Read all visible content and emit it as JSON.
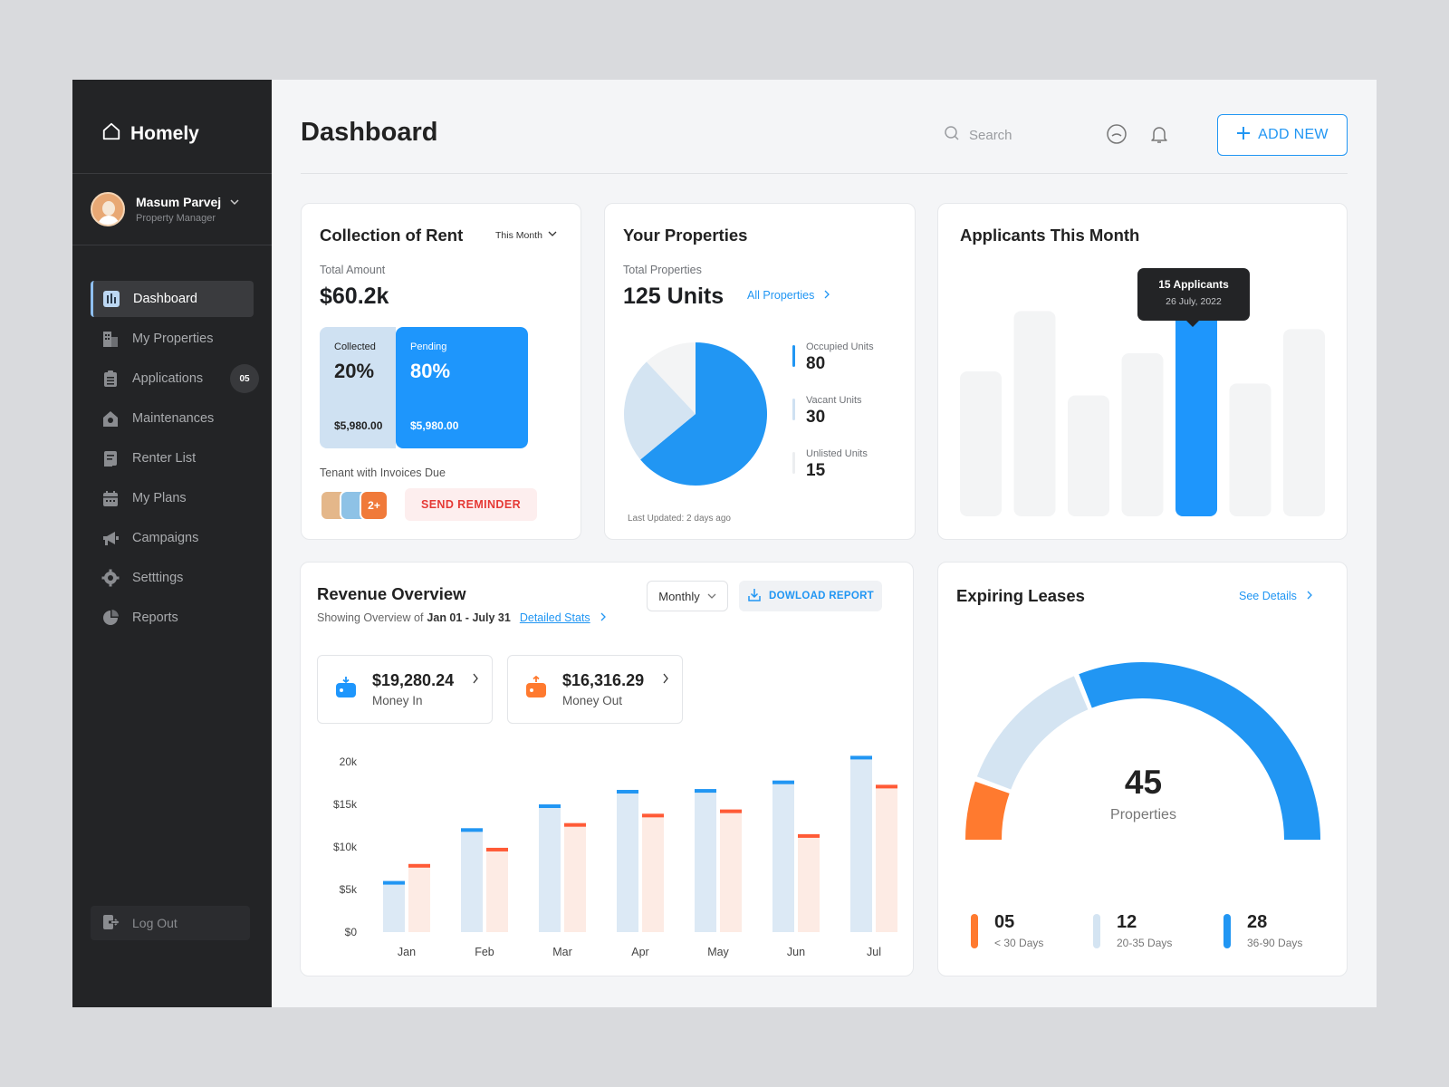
{
  "app": {
    "name": "Homely"
  },
  "user": {
    "name": "Masum Parvej",
    "role": "Property Manager"
  },
  "nav": [
    {
      "label": "Dashboard",
      "icon": "chart-icon",
      "active": true
    },
    {
      "label": "My Properties",
      "icon": "building-icon"
    },
    {
      "label": "Applications",
      "icon": "clipboard-icon",
      "badge": "05"
    },
    {
      "label": "Maintenances",
      "icon": "home-gear-icon"
    },
    {
      "label": "Renter List",
      "icon": "list-icon"
    },
    {
      "label": "My Plans",
      "icon": "calendar-icon"
    },
    {
      "label": "Campaigns",
      "icon": "megaphone-icon"
    },
    {
      "label": "Setttings",
      "icon": "gear-icon"
    },
    {
      "label": "Reports",
      "icon": "pie-icon"
    }
  ],
  "logout_label": "Log Out",
  "header": {
    "title": "Dashboard",
    "search_placeholder": "Search",
    "add_new_label": "ADD NEW"
  },
  "rent": {
    "title": "Collection of Rent",
    "filter": "This Month",
    "total_label": "Total Amount",
    "total_value": "$60.2k",
    "collected": {
      "label": "Collected",
      "pct": "20%",
      "amount": "$5,980.00"
    },
    "pending": {
      "label": "Pending",
      "pct": "80%",
      "amount": "$5,980.00"
    },
    "tenants_label": "Tenant with Invoices Due",
    "more_count": "2+",
    "reminder_label": "SEND REMINDER"
  },
  "properties": {
    "title": "Your Properties",
    "total_label": "Total Properties",
    "total_value": "125 Units",
    "link_label": "All Properties",
    "legend": [
      {
        "label": "Occupied Units",
        "value": "80",
        "color": "#2196f3"
      },
      {
        "label": "Vacant Units",
        "value": "30",
        "color": "#cfe1f2"
      },
      {
        "label": "Unlisted Units",
        "value": "15",
        "color": "#f3f4f5"
      }
    ],
    "updated": "Last Updated: 2 days ago"
  },
  "applicants": {
    "title": "Applicants This Month",
    "tooltip_title": "15 Applicants",
    "tooltip_date": "26 July, 2022"
  },
  "revenue": {
    "title": "Revenue Overview",
    "subtitle_prefix": "Showing Overview of",
    "subtitle_range": "Jan 01 - July 31",
    "stats_link": "Detailed Stats",
    "period": "Monthly",
    "download_label": "DOWLOAD REPORT",
    "money_in": {
      "value": "$19,280.24",
      "label": "Money In"
    },
    "money_out": {
      "value": "$16,316.29",
      "label": "Money Out"
    }
  },
  "leases": {
    "title": "Expiring Leases",
    "link_label": "See Details",
    "center_value": "45",
    "center_label": "Properties",
    "stats": [
      {
        "value": "05",
        "label": "< 30 Days",
        "color": "#ff7a2f"
      },
      {
        "value": "12",
        "label": "20-35 Days",
        "color": "#d4e4f2"
      },
      {
        "value": "28",
        "label": "36-90 Days",
        "color": "#2196f3"
      }
    ]
  },
  "chart_data": [
    {
      "type": "pie",
      "title": "Your Properties",
      "labels": [
        "Occupied Units",
        "Vacant Units",
        "Unlisted Units"
      ],
      "values": [
        80,
        30,
        15
      ],
      "colors": [
        "#2196f3",
        "#d4e4f2",
        "#f3f4f5"
      ]
    },
    {
      "type": "bar",
      "title": "Applicants This Month",
      "values": [
        12,
        17,
        10,
        13.5,
        17.5,
        11,
        15.5
      ],
      "highlight_index": 4,
      "colors": {
        "bar": "#f3f4f5",
        "highlight": "#1e96fc"
      }
    },
    {
      "type": "bar",
      "title": "Revenue Overview",
      "categories": [
        "Jan",
        "Feb",
        "Mar",
        "Apr",
        "May",
        "Jun",
        "Jul"
      ],
      "yticks": [
        "$0",
        "$5k",
        "$10k",
        "$15k",
        "20k"
      ],
      "ylim": [
        0,
        20000
      ],
      "series": [
        {
          "name": "Money In",
          "values": [
            6000,
            12200,
            15000,
            16700,
            16800,
            17800,
            20700
          ],
          "color": "#2196f3"
        },
        {
          "name": "Money Out",
          "values": [
            8000,
            9900,
            12800,
            13900,
            14400,
            11500,
            17300
          ],
          "color": "#ff5a36"
        }
      ]
    },
    {
      "type": "pie",
      "title": "Expiring Leases",
      "labels": [
        "< 30 Days",
        "20-35 Days",
        "36-90 Days"
      ],
      "values": [
        5,
        12,
        28
      ],
      "colors": [
        "#ff7a2f",
        "#d4e4f2",
        "#2196f3"
      ]
    }
  ]
}
